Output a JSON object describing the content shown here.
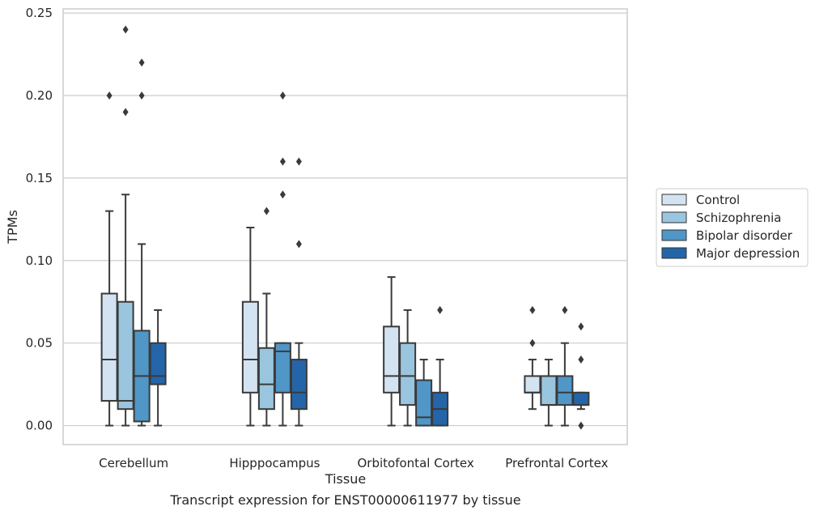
{
  "chart_data": {
    "type": "box",
    "title": "Transcript expression for ENST00000611977 by tissue",
    "xlabel": "Tissue",
    "ylabel": "TPMs",
    "ylim": [
      -0.0115,
      0.2525
    ],
    "yticks": [
      "0.00",
      "0.05",
      "0.10",
      "0.15",
      "0.20",
      "0.25"
    ],
    "grid": "horizontal",
    "legend_position": "right",
    "categories": [
      "Cerebellum",
      "Hipppocampus",
      "Orbitofontal Cortex",
      "Prefrontal Cortex"
    ],
    "series": [
      {
        "name": "Control",
        "color": "#d3e3f2",
        "boxes": [
          {
            "whislo": 0.0,
            "q1": 0.015,
            "med": 0.04,
            "q3": 0.08,
            "whishi": 0.13,
            "fliers": [
              0.2
            ]
          },
          {
            "whislo": 0.0,
            "q1": 0.02,
            "med": 0.04,
            "q3": 0.075,
            "whishi": 0.12,
            "fliers": []
          },
          {
            "whislo": 0.0,
            "q1": 0.02,
            "med": 0.03,
            "q3": 0.06,
            "whishi": 0.09,
            "fliers": []
          },
          {
            "whislo": 0.01,
            "q1": 0.02,
            "med": 0.02,
            "q3": 0.03,
            "whishi": 0.04,
            "fliers": [
              0.05,
              0.07
            ]
          }
        ]
      },
      {
        "name": "Schizophrenia",
        "color": "#9ac5de",
        "boxes": [
          {
            "whislo": 0.0,
            "q1": 0.01,
            "med": 0.015,
            "q3": 0.075,
            "whishi": 0.14,
            "fliers": [
              0.19,
              0.24
            ]
          },
          {
            "whislo": 0.0,
            "q1": 0.01,
            "med": 0.025,
            "q3": 0.047,
            "whishi": 0.08,
            "fliers": [
              0.13
            ]
          },
          {
            "whislo": 0.0,
            "q1": 0.0125,
            "med": 0.03,
            "q3": 0.05,
            "whishi": 0.07,
            "fliers": []
          },
          {
            "whislo": 0.0,
            "q1": 0.0125,
            "med": 0.0125,
            "q3": 0.03,
            "whishi": 0.04,
            "fliers": []
          }
        ]
      },
      {
        "name": "Bipolar disorder",
        "color": "#5096c7",
        "boxes": [
          {
            "whislo": 0.0,
            "q1": 0.0025,
            "med": 0.03,
            "q3": 0.0575,
            "whishi": 0.11,
            "fliers": [
              0.2,
              0.22
            ]
          },
          {
            "whislo": 0.0,
            "q1": 0.02,
            "med": 0.045,
            "q3": 0.05,
            "whishi": 0.05,
            "fliers": [
              0.14,
              0.16,
              0.2
            ]
          },
          {
            "whislo": 0.0,
            "q1": 0.0,
            "med": 0.005,
            "q3": 0.0275,
            "whishi": 0.04,
            "fliers": []
          },
          {
            "whislo": 0.0,
            "q1": 0.0125,
            "med": 0.02,
            "q3": 0.03,
            "whishi": 0.05,
            "fliers": [
              0.07
            ]
          }
        ]
      },
      {
        "name": "Major depression",
        "color": "#2465a9",
        "boxes": [
          {
            "whislo": 0.0,
            "q1": 0.025,
            "med": 0.03,
            "q3": 0.05,
            "whishi": 0.07,
            "fliers": []
          },
          {
            "whislo": 0.0,
            "q1": 0.01,
            "med": 0.02,
            "q3": 0.04,
            "whishi": 0.05,
            "fliers": [
              0.11,
              0.16
            ]
          },
          {
            "whislo": 0.0,
            "q1": 0.0,
            "med": 0.01,
            "q3": 0.02,
            "whishi": 0.04,
            "fliers": [
              0.07
            ]
          },
          {
            "whislo": 0.01,
            "q1": 0.0125,
            "med": 0.0125,
            "q3": 0.02,
            "whishi": 0.02,
            "fliers": [
              0.0,
              0.04,
              0.06
            ]
          }
        ]
      }
    ]
  }
}
